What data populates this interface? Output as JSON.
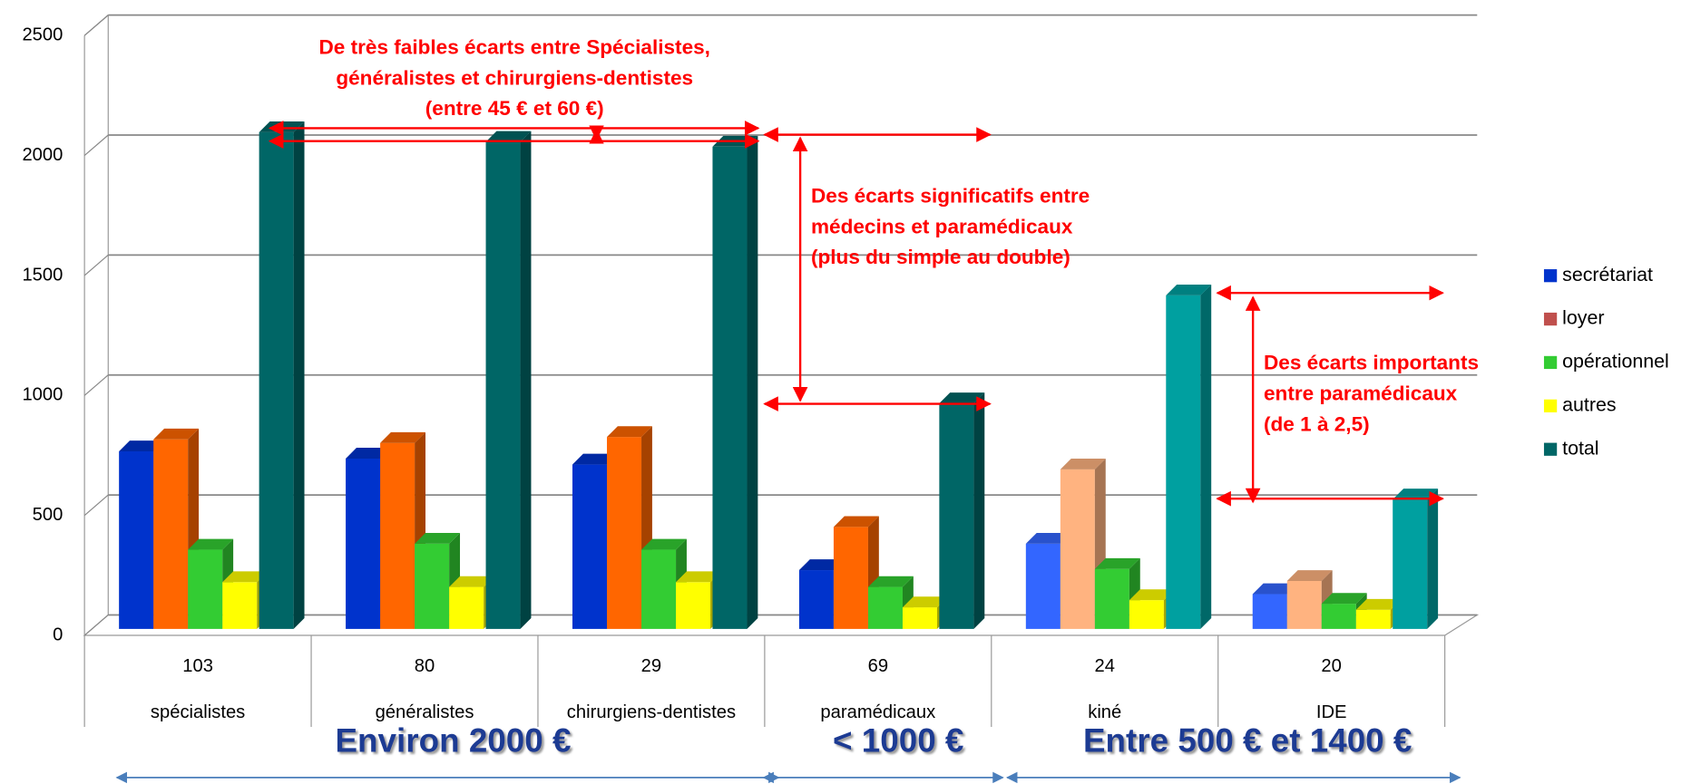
{
  "chart_data": {
    "type": "bar3d",
    "categories": [
      "spécialistes",
      "généralistes",
      "chirurgiens-dentistes",
      "paramédicaux",
      "kiné",
      "IDE"
    ],
    "category_numbers": [
      103,
      80,
      29,
      69,
      24,
      20
    ],
    "series": [
      {
        "name": "secrétariat",
        "color": "#0033cc",
        "bar_colors": [
          "#0033cc",
          "#0033cc",
          "#0033cc",
          "#0033cc",
          "#3366ff",
          "#3366ff"
        ],
        "values": [
          740,
          710,
          685,
          245,
          355,
          145
        ]
      },
      {
        "name": "loyer",
        "color": "#c0504d",
        "bar_colors": [
          "#ff6600",
          "#ff6600",
          "#ff6600",
          "#ff6600",
          "#ffb380",
          "#ffb380"
        ],
        "values": [
          790,
          775,
          800,
          425,
          665,
          200
        ]
      },
      {
        "name": "opérationnel",
        "color": "#33cc33",
        "bar_colors": [
          "#33cc33",
          "#33cc33",
          "#33cc33",
          "#33cc33",
          "#33cc33",
          "#33cc33"
        ],
        "values": [
          330,
          355,
          330,
          175,
          250,
          105
        ]
      },
      {
        "name": "autres",
        "color": "#ffff00",
        "bar_colors": [
          "#ffff00",
          "#ffff00",
          "#ffff00",
          "#ffff00",
          "#ffff00",
          "#ffff00"
        ],
        "values": [
          195,
          175,
          195,
          90,
          120,
          80
        ]
      },
      {
        "name": "total",
        "color": "#006666",
        "bar_colors": [
          "#006666",
          "#006666",
          "#006666",
          "#006666",
          "#00a0a0",
          "#00a0a0"
        ],
        "values": [
          2070,
          2030,
          2010,
          940,
          1390,
          540
        ]
      }
    ],
    "ylim": [
      0,
      2500
    ],
    "yticks": [
      0,
      500,
      1000,
      1500,
      2000,
      2500
    ],
    "grid": true,
    "legend": "right",
    "annotations": [
      {
        "lines": [
          "De très faibles écarts entre Spécialistes,",
          "généralistes et chirurgiens-dentistes",
          "(entre 45 € et 60 €)"
        ]
      },
      {
        "lines": [
          "Des écarts significatifs entre",
          "médecins et paramédicaux",
          "(plus du simple au double)"
        ]
      },
      {
        "lines": [
          "Des écarts importants",
          "entre  paramédicaux",
          "(de 1 à 2,5)"
        ]
      }
    ],
    "group_labels": [
      "Environ 2000 €",
      "< 1000 €",
      "Entre 500 € et 1400 €"
    ]
  }
}
